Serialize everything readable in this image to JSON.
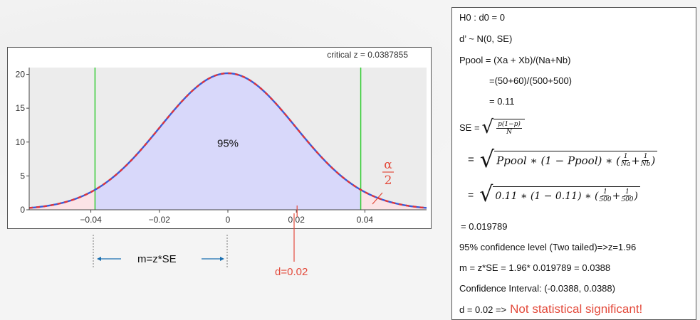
{
  "chart_data": {
    "type": "line",
    "title": "critical z = 0.0387855",
    "xlim": [
      -0.058,
      0.058
    ],
    "ylim": [
      0,
      21
    ],
    "x_ticks": [
      -0.04,
      -0.02,
      0,
      0.02,
      0.04
    ],
    "x_tick_labels": [
      "−0.04",
      "−0.02",
      "0",
      "0.02",
      "0.04"
    ],
    "y_ticks": [
      0,
      5,
      10,
      15,
      20
    ],
    "y_tick_labels": [
      "0",
      "5",
      "10",
      "15",
      "20"
    ],
    "distribution": {
      "mean": 0,
      "sd": 0.019789
    },
    "critical_lines": [
      -0.0387855,
      0.0387855
    ],
    "center_label": "95%",
    "alpha_label": {
      "num": "α",
      "den": "2"
    },
    "marker_x": 0.02,
    "colors": {
      "fill": "#d8d8fa",
      "tail": "#fbe3e6",
      "curve_red": "#e0343a",
      "curve_blue": "#3a5bd8",
      "critical": "#33cc33",
      "marker": "#e34b3c"
    }
  },
  "annotations": {
    "margin_label": "m=z*SE",
    "d_label": "d=0.02"
  },
  "panel": {
    "h0": "H0 : d0 = 0",
    "dist": "d’ ~ N(0, SE)",
    "ppool": "Ppool = (Xa + Xb)/(Na+Nb)",
    "ppool_calc": "=(50+60)/(500+500)",
    "ppool_val": "= 0.11",
    "se_label": "SE =",
    "se_eq2": "=",
    "se_eq3": "=",
    "se_val": "= 0.019789",
    "conf_level": "95% confidence level (Two tailed)=>z=1.96",
    "m_calc": "m = z*SE = 1.96* 0.019789 = 0.0388",
    "ci": "Confidence Interval: (-0.0388, 0.0388)",
    "conclusion_prefix": "d = 0.02 =>",
    "conclusion": "Not statistical significant!"
  }
}
